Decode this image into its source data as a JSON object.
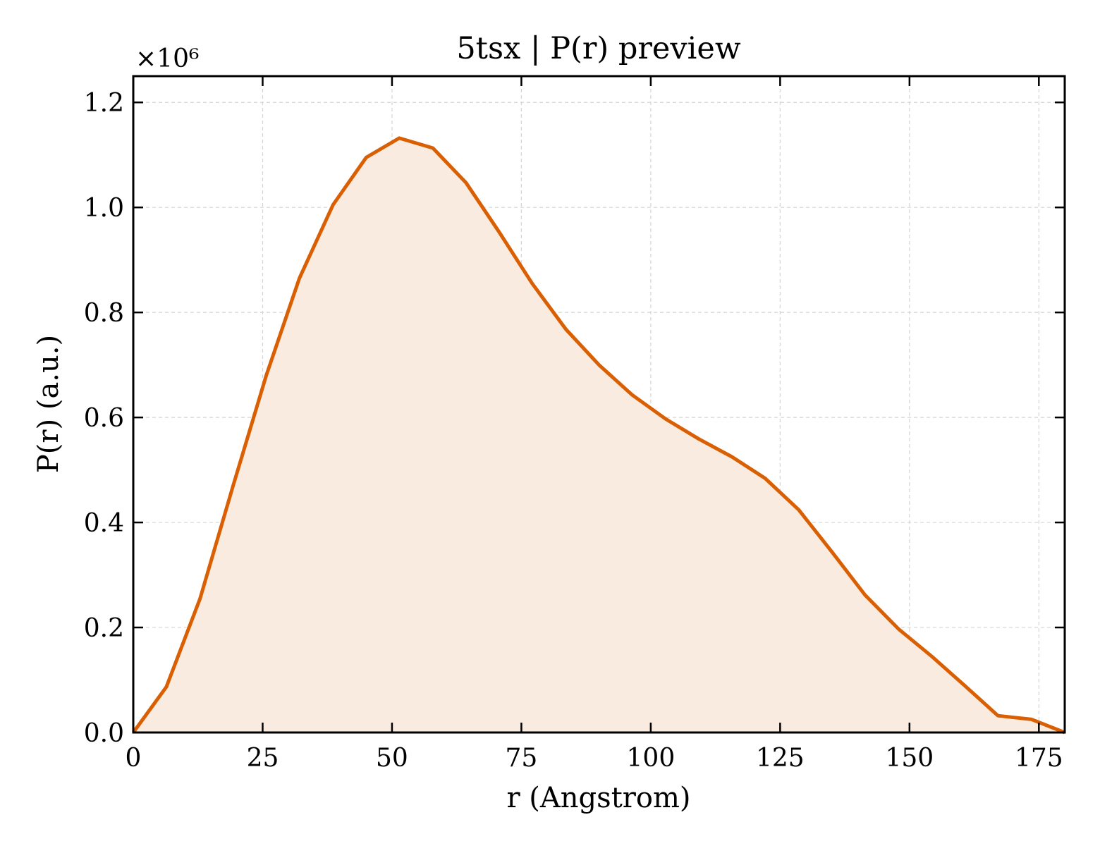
{
  "chart_data": {
    "type": "area",
    "title": "5tsx | P(r) preview",
    "xlabel": "r (Angstrom)",
    "ylabel": "P(r) (a.u.)",
    "y_scale_label": "×10⁶",
    "y_multiplier": 1000000,
    "xlim": [
      0,
      180
    ],
    "ylim": [
      0,
      1.25
    ],
    "x_ticks": [
      0,
      25,
      50,
      75,
      100,
      125,
      150,
      175
    ],
    "y_ticks": [
      0.0,
      0.2,
      0.4,
      0.6,
      0.8,
      1.0,
      1.2
    ],
    "x_tick_labels": [
      "0",
      "25",
      "50",
      "75",
      "100",
      "125",
      "150",
      "175"
    ],
    "y_tick_labels": [
      "0.0",
      "0.2",
      "0.4",
      "0.6",
      "0.8",
      "1.0",
      "1.2"
    ],
    "grid": true,
    "line_color": "#d95f02",
    "fill_color": "#f9ebe0",
    "x": [
      0,
      6.4,
      12.9,
      19.3,
      25.7,
      32.1,
      38.6,
      45.0,
      51.4,
      57.9,
      64.3,
      70.7,
      77.1,
      83.6,
      90.0,
      96.4,
      102.9,
      109.3,
      115.7,
      122.1,
      128.6,
      135.0,
      141.4,
      147.9,
      154.3,
      160.7,
      167.1,
      173.6,
      180.0
    ],
    "y": [
      0.0,
      0.087,
      0.255,
      0.47,
      0.68,
      0.865,
      1.005,
      1.095,
      1.132,
      1.113,
      1.047,
      0.953,
      0.855,
      0.768,
      0.7,
      0.643,
      0.597,
      0.559,
      0.525,
      0.484,
      0.424,
      0.344,
      0.262,
      0.197,
      0.145,
      0.089,
      0.032,
      0.025,
      0.0
    ]
  }
}
